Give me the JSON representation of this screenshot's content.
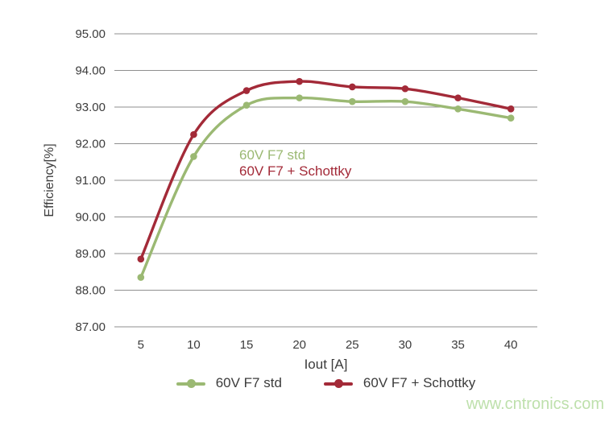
{
  "watermark": {
    "text": "www.cntronics.com",
    "color": "#bee0ac"
  },
  "chart_data": {
    "type": "line",
    "x": [
      5,
      10,
      15,
      20,
      25,
      30,
      35,
      40
    ],
    "xlabel": "Iout [A]",
    "ylabel": "Efficiency[%]",
    "ylim": [
      87.0,
      95.0
    ],
    "ytick_step": 1.0,
    "ytick_decimals": 2,
    "grid": true,
    "legend_position": "bottom",
    "series": [
      {
        "name": "60V F7 std",
        "color": "#9bb973",
        "values": [
          88.35,
          91.65,
          93.05,
          93.25,
          93.15,
          93.15,
          92.95,
          92.7
        ]
      },
      {
        "name": "60V F7 + Schottky",
        "color": "#a32a38",
        "values": [
          88.85,
          92.25,
          93.45,
          93.7,
          93.55,
          93.5,
          93.25,
          92.95
        ]
      }
    ],
    "annotations": [
      {
        "text": "60V F7 std",
        "color": "#9bb973"
      },
      {
        "text": "60V F7 + Schottky",
        "color": "#a32a38"
      }
    ],
    "axis_text_color": "#3c3c3c",
    "gridline_color": "#8f8f8f"
  }
}
